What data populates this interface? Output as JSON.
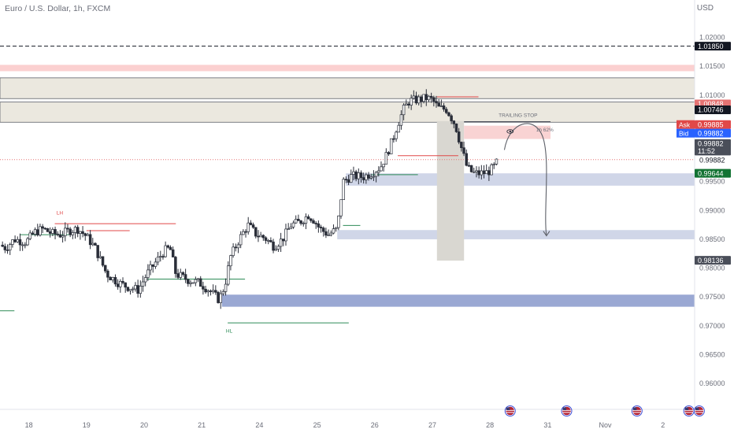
{
  "header": {
    "symbol_title": "Euro / U.S. Dollar, 1h, FXCM",
    "currency": "USD"
  },
  "colors": {
    "candle": "#2a2e39",
    "supply_zone": "#ebe8df",
    "resistance_band": "#fbd0d0",
    "demand_zone": "#d0d6e8",
    "demand_zone_dark": "#9aa8d3",
    "red_line": "#e04848",
    "green_line": "#2e8b57",
    "ask": "#e04848",
    "bid": "#2962ff",
    "price": "#131722",
    "support_price": "#137333",
    "grey_tag": "#4a4e59"
  },
  "chart_data": {
    "type": "candlestick",
    "title": "Euro / U.S. Dollar, 1h, FXCM",
    "ylim": [
      0.9555,
      1.0265
    ],
    "y_ticks": [
      "1.02000",
      "1.01500",
      "1.01000",
      "1.00500",
      "1.00000",
      "0.99500",
      "0.99000",
      "0.98500",
      "0.98000",
      "0.97500",
      "0.97000",
      "0.96500",
      "0.96000"
    ],
    "x_ticks": [
      {
        "label": "18",
        "x": 0.5
      },
      {
        "label": "19",
        "x": 1.5
      },
      {
        "label": "20",
        "x": 2.5
      },
      {
        "label": "21",
        "x": 3.5
      },
      {
        "label": "24",
        "x": 4.5
      },
      {
        "label": "25",
        "x": 5.5
      },
      {
        "label": "26",
        "x": 6.5
      },
      {
        "label": "27",
        "x": 7.5
      },
      {
        "label": "28",
        "x": 8.5
      },
      {
        "label": "31",
        "x": 9.5
      },
      {
        "label": "Nov",
        "x": 10.5
      },
      {
        "label": "2",
        "x": 11.5
      }
    ],
    "xlim": [
      0,
      12.05
    ],
    "price_path": [
      [
        0.0,
        0.984
      ],
      [
        0.1,
        0.9835
      ],
      [
        0.25,
        0.985
      ],
      [
        0.45,
        0.9845
      ],
      [
        0.6,
        0.9862
      ],
      [
        0.75,
        0.9868
      ],
      [
        0.9,
        0.986
      ],
      [
        1.05,
        0.9858
      ],
      [
        1.2,
        0.9865
      ],
      [
        1.35,
        0.9868
      ],
      [
        1.5,
        0.9855
      ],
      [
        1.65,
        0.9835
      ],
      [
        1.85,
        0.979
      ],
      [
        2.05,
        0.9775
      ],
      [
        2.2,
        0.9768
      ],
      [
        2.4,
        0.9762
      ],
      [
        2.55,
        0.979
      ],
      [
        2.7,
        0.981
      ],
      [
        2.85,
        0.983
      ],
      [
        2.95,
        0.9835
      ],
      [
        3.05,
        0.979
      ],
      [
        3.25,
        0.978
      ],
      [
        3.45,
        0.9775
      ],
      [
        3.65,
        0.976
      ],
      [
        3.8,
        0.9745
      ],
      [
        3.9,
        0.977
      ],
      [
        4.0,
        0.982
      ],
      [
        4.15,
        0.985
      ],
      [
        4.3,
        0.9875
      ],
      [
        4.45,
        0.9858
      ],
      [
        4.6,
        0.9852
      ],
      [
        4.75,
        0.9838
      ],
      [
        4.9,
        0.985
      ],
      [
        5.05,
        0.9875
      ],
      [
        5.2,
        0.988
      ],
      [
        5.35,
        0.9892
      ],
      [
        5.45,
        0.9883
      ],
      [
        5.55,
        0.9868
      ],
      [
        5.7,
        0.9858
      ],
      [
        5.85,
        0.9868
      ],
      [
        5.95,
        0.995
      ],
      [
        6.1,
        0.996
      ],
      [
        6.3,
        0.9958
      ],
      [
        6.45,
        0.9965
      ],
      [
        6.6,
        0.9975
      ],
      [
        6.7,
        0.9995
      ],
      [
        6.8,
        1.002
      ],
      [
        6.9,
        1.005
      ],
      [
        7.0,
        1.0075
      ],
      [
        7.1,
        1.009
      ],
      [
        7.25,
        1.0092
      ],
      [
        7.4,
        1.0095
      ],
      [
        7.5,
        1.0092
      ],
      [
        7.6,
        1.0078
      ],
      [
        7.75,
        1.0075
      ],
      [
        7.9,
        1.0048
      ],
      [
        8.0,
        1.001
      ],
      [
        8.1,
        0.9975
      ],
      [
        8.2,
        0.9965
      ],
      [
        8.3,
        0.9964
      ],
      [
        8.45,
        0.9966
      ],
      [
        8.55,
        0.9973
      ],
      [
        8.65,
        0.9988
      ]
    ],
    "zones": [
      {
        "name": "resistance-band",
        "y1": 1.01525,
        "y2": 1.01415,
        "x1": 0,
        "x2": 12.05,
        "color": "#fbd0d0"
      },
      {
        "name": "supply-zone-upper",
        "y1": 1.013,
        "y2": 1.0094,
        "x1": 0,
        "x2": 12.05,
        "color": "#ebe8df"
      },
      {
        "name": "supply-zone-lower",
        "y1": 1.0088,
        "y2": 1.0053,
        "x1": 0,
        "x2": 12.05,
        "color": "#ebe8df"
      },
      {
        "name": "demand-zone-1",
        "y1": 0.99644,
        "y2": 0.9943,
        "x1": 6.0,
        "x2": 12.05,
        "color": "#d0d6e8"
      },
      {
        "name": "demand-zone-2",
        "y1": 0.9866,
        "y2": 0.985,
        "x1": 5.85,
        "x2": 12.05,
        "color": "#d0d6e8"
      },
      {
        "name": "demand-zone-3",
        "y1": 0.9754,
        "y2": 0.9733,
        "x1": 3.85,
        "x2": 12.05,
        "color": "#9aa8d3"
      },
      {
        "name": "stop-box",
        "y1": 1.0055,
        "y2": 0.9813,
        "x1": 7.58,
        "x2": 8.05,
        "color": "#d9d7d1"
      },
      {
        "name": "target-box",
        "y1": 1.0047,
        "y2": 1.0024,
        "x1": 8.05,
        "x2": 9.55,
        "color": "#f9d3d3"
      }
    ],
    "level_lines": [
      {
        "name": "dashed-level",
        "y": 1.0185,
        "x1": 0,
        "x2": 12.05,
        "color": "#131722",
        "dash": true
      },
      {
        "name": "price-line",
        "y": 0.99882,
        "x1": 0,
        "x2": 12.05,
        "color": "#e57373",
        "dot": true
      }
    ],
    "annotation_lines": [
      {
        "name": "lh-line",
        "y": 0.9877,
        "x1": 0.95,
        "x2": 3.05,
        "color": "#e04848"
      },
      {
        "name": "red-mid-line",
        "y": 0.9865,
        "x1": 1.5,
        "x2": 2.25,
        "color": "#e04848"
      },
      {
        "name": "green-line-left",
        "y": 0.9858,
        "x1": 0.35,
        "x2": 1.2,
        "color": "#2e8b57"
      },
      {
        "name": "green-line-mid",
        "y": 0.9781,
        "x1": 2.55,
        "x2": 4.25,
        "color": "#2e8b57"
      },
      {
        "name": "green-line-low",
        "y": 0.9705,
        "x1": 3.95,
        "x2": 6.05,
        "color": "#2e8b57"
      },
      {
        "name": "green-line-25",
        "y": 0.9874,
        "x1": 5.95,
        "x2": 6.25,
        "color": "#2e8b57"
      },
      {
        "name": "green-line-26",
        "y": 0.9962,
        "x1": 6.45,
        "x2": 7.25,
        "color": "#2e8b57"
      },
      {
        "name": "red-line-27-top",
        "y": 1.0097,
        "x1": 7.58,
        "x2": 8.3,
        "color": "#e04848"
      },
      {
        "name": "red-line-27-mid",
        "y": 0.9995,
        "x1": 6.9,
        "x2": 7.95,
        "color": "#e04848"
      },
      {
        "name": "trailing-stop-line",
        "y": 1.0054,
        "x1": 8.05,
        "x2": 9.55,
        "color": "#4a4e59"
      },
      {
        "name": "green-line-left-edge",
        "y": 0.9726,
        "x1": 0,
        "x2": 0.25,
        "color": "#2e8b57"
      }
    ],
    "annotations": [
      {
        "name": "lh-label",
        "text": "LH",
        "x": 0.98,
        "y": 0.9893,
        "color": "#e04848"
      },
      {
        "name": "hl-label",
        "text": "HL",
        "x": 3.92,
        "y": 0.9688,
        "color": "#2e8b57"
      },
      {
        "name": "trailing-stop-label",
        "text": "TRAILING STOP",
        "x": 8.65,
        "y": 1.0062,
        "color": "#6a6d78"
      },
      {
        "name": "target-percent-label",
        "text": "1h 62%",
        "x": 9.3,
        "y": 1.0037,
        "color": "#6a6d78"
      }
    ],
    "projection": {
      "from": [
        8.75,
        1.0005
      ],
      "peak": [
        8.95,
        1.0036
      ],
      "to": [
        9.48,
        0.9856
      ]
    },
    "right_tags": [
      {
        "name": "tag-dashed",
        "label": "1.01850",
        "y": 1.0185,
        "bg": "#131722",
        "fg": "#ffffff"
      },
      {
        "name": "tag-high",
        "label": "1.00848",
        "y": 1.00848,
        "bg": "#e57373",
        "fg": "#ffffff"
      },
      {
        "name": "tag-zone",
        "label": "1.00746",
        "y": 1.00746,
        "bg": "#131722",
        "fg": "#ffffff"
      },
      {
        "name": "tag-ask",
        "label": "0.99885",
        "prefix": "Ask",
        "y": 1.0049,
        "bg": "#e04848",
        "fg": "#ffffff"
      },
      {
        "name": "tag-bid",
        "label": "0.99882",
        "prefix": "Bid",
        "y": 1.0034,
        "bg": "#2962ff",
        "fg": "#ffffff"
      },
      {
        "name": "tag-price",
        "label": "0.99882",
        "y": 1.0016,
        "bg": "#4a4e59",
        "fg": "#ffffff"
      },
      {
        "name": "tag-countdown",
        "label": "11:52",
        "y": 1.0003,
        "bg": "#4a4e59",
        "fg": "#ffffff"
      },
      {
        "name": "tag-support",
        "label": "0.99644",
        "y": 0.99644,
        "bg": "#137333",
        "fg": "#ffffff"
      },
      {
        "name": "tag-low",
        "label": "0.98136",
        "y": 0.98136,
        "bg": "#4a4e59",
        "fg": "#ffffff"
      }
    ],
    "price_axis_value": "0.99882",
    "event_icons": [
      {
        "x": 8.85
      },
      {
        "x": 9.83
      },
      {
        "x": 11.05
      },
      {
        "x": 11.95
      },
      {
        "x": 12.13
      }
    ],
    "grid": false
  }
}
